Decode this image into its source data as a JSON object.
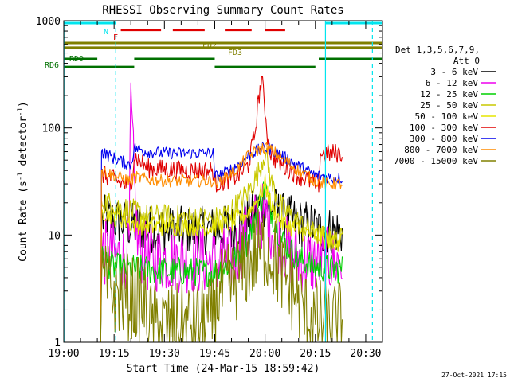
{
  "chart_data": {
    "type": "line",
    "title": "RHESSI Observing Summary Count Rates",
    "xlabel": "Start Time (24-Mar-15 18:59:42)",
    "ylabel": "Count Rate (s⁻¹ detector⁻¹)",
    "ylabel_main": "Count Rate (s",
    "ylabel_sup1": "-1",
    "ylabel_mid": " detector",
    "ylabel_sup2": "-1",
    "ylabel_end": ")",
    "yscale": "log",
    "ylim": [
      1,
      1000
    ],
    "xlim_min": [
      0,
      95
    ],
    "x_ticks": [
      {
        "min": 0,
        "label": "19:00"
      },
      {
        "min": 15,
        "label": "19:15"
      },
      {
        "min": 30,
        "label": "19:30"
      },
      {
        "min": 45,
        "label": "19:45"
      },
      {
        "min": 60,
        "label": "20:00"
      },
      {
        "min": 75,
        "label": "20:15"
      },
      {
        "min": 90,
        "label": "20:30"
      }
    ],
    "y_ticks": [
      {
        "value": 1,
        "label": "1"
      },
      {
        "value": 10,
        "label": "10"
      },
      {
        "value": 100,
        "label": "100"
      },
      {
        "value": 1000,
        "label": "1000"
      }
    ],
    "legend_header": [
      "Det 1,3,5,6,7,9,",
      "Att 0"
    ],
    "legend_position": "right",
    "footer": "27-Oct-2021 17:15",
    "flag_labels": [
      {
        "text": "N",
        "color": "#00e5ee"
      },
      {
        "text": "F",
        "color": "#e00000"
      },
      {
        "text": "FD2",
        "color": "#808000"
      },
      {
        "text": "FD3",
        "color": "#808000"
      },
      {
        "text": "RD0",
        "color": "#007000"
      },
      {
        "text": "RD6",
        "color": "#007000"
      }
    ],
    "flag_bars": [
      {
        "label": "N",
        "y": 950,
        "color": "#00e5ee",
        "segments": [
          [
            0,
            15.5
          ],
          [
            78,
            95
          ]
        ]
      },
      {
        "label": "F",
        "y": 820,
        "color": "#e00000",
        "segments": [
          [
            17,
            29
          ],
          [
            32.5,
            42
          ],
          [
            48,
            56
          ],
          [
            60,
            66
          ]
        ]
      },
      {
        "label": "FD2",
        "y": 620,
        "color": "#808000",
        "segments": [
          [
            0,
            95
          ]
        ]
      },
      {
        "label": "FD3",
        "y": 560,
        "color": "#808000",
        "segments": [
          [
            0,
            95
          ]
        ]
      },
      {
        "label": "RD0",
        "y": 440,
        "color": "#007000",
        "segments": [
          [
            0,
            10
          ],
          [
            21,
            45
          ],
          [
            76,
            95
          ]
        ]
      },
      {
        "label": "RD6",
        "y": 370,
        "color": "#007000",
        "segments": [
          [
            0,
            21
          ],
          [
            45,
            75
          ]
        ]
      }
    ],
    "event_lines": [
      {
        "x": 0.3,
        "color": "#00e5ee",
        "dashed": false
      },
      {
        "x": 15.5,
        "color": "#00e5ee",
        "dashed": true
      },
      {
        "x": 78,
        "color": "#00e5ee",
        "dashed": false
      },
      {
        "x": 92,
        "color": "#00e5ee",
        "dashed": true
      }
    ],
    "series": [
      {
        "name": "3 - 6 keV",
        "color": "#000000",
        "x": [
          11,
          11.2,
          14,
          18,
          20,
          22,
          25,
          30,
          35,
          40,
          44.5,
          45,
          50,
          55,
          58,
          60,
          62,
          65,
          70,
          75,
          76,
          78,
          80,
          82,
          83
        ],
        "y": [
          1,
          14,
          14,
          13,
          12,
          12,
          11.5,
          11,
          11,
          11,
          11,
          11,
          11.5,
          14,
          18,
          20,
          18,
          15,
          13,
          12,
          11,
          11,
          11,
          11,
          10.5
        ],
        "noise": 0.1
      },
      {
        "name": "6 - 12 keV",
        "color": "#ee00ee",
        "x": [
          11,
          11.2,
          15,
          18,
          19.5,
          20,
          21,
          22,
          25,
          30,
          35,
          40,
          44.5,
          45,
          50,
          55,
          58,
          60,
          62,
          65,
          70,
          75,
          76,
          78,
          80,
          83
        ],
        "y": [
          1,
          7,
          6.5,
          6,
          8,
          170,
          30,
          8,
          6,
          6,
          6,
          5.8,
          5.6,
          5.5,
          6,
          10,
          14,
          16,
          12,
          8,
          6,
          5.6,
          5.8,
          5.7,
          5.7,
          5.6
        ],
        "noise": 0.14
      },
      {
        "name": "12 - 25 keV",
        "color": "#00d000",
        "x": [
          11,
          11.2,
          15,
          20,
          25,
          30,
          35,
          40,
          44.5,
          45,
          50,
          55,
          58,
          60,
          62,
          65,
          70,
          75,
          76,
          78,
          80,
          83
        ],
        "y": [
          1,
          6,
          5,
          4.8,
          4.8,
          4.6,
          4.6,
          4.5,
          4.5,
          4.6,
          5.5,
          9,
          18,
          28,
          16,
          9,
          6,
          5,
          5,
          5,
          4.8,
          4.8
        ],
        "noise": 0.06
      },
      {
        "name": "25 - 50 keV",
        "color": "#c8c800",
        "x": [
          11,
          11.2,
          15,
          20,
          25,
          30,
          35,
          40,
          44.5,
          45,
          50,
          55,
          58,
          60,
          62,
          65,
          70,
          75,
          76,
          78,
          80,
          83
        ],
        "y": [
          1,
          21,
          19,
          17,
          15,
          15,
          14.5,
          14.5,
          14,
          14,
          17,
          25,
          38,
          60,
          30,
          18,
          13,
          10,
          10,
          9.5,
          9,
          9
        ],
        "noise": 0.05
      },
      {
        "name": "50 - 100 keV",
        "color": "#e6e600",
        "x": [
          11,
          11.2,
          15,
          20,
          25,
          30,
          35,
          40,
          44.5,
          45,
          50,
          55,
          58,
          60,
          62,
          65,
          70,
          75,
          76,
          78,
          80,
          83
        ],
        "y": [
          1,
          17,
          15,
          13,
          12,
          12,
          12,
          12,
          12,
          12,
          13,
          16,
          22,
          30,
          18,
          13,
          11,
          10,
          10,
          9,
          9,
          9
        ],
        "noise": 0.04
      },
      {
        "name": "100 - 300 keV",
        "color": "#e00000",
        "x": [
          11,
          11.2,
          15,
          20,
          21,
          25,
          30,
          35,
          40,
          44.5,
          45,
          48,
          52,
          55,
          57,
          58,
          59,
          60,
          61,
          62,
          65,
          70,
          75,
          76,
          76.5,
          78,
          80,
          83
        ],
        "y": [
          1,
          37,
          33,
          28,
          55,
          42,
          41,
          40,
          40,
          40,
          30,
          32,
          36,
          45,
          90,
          180,
          290,
          150,
          70,
          55,
          45,
          36,
          30,
          30,
          58,
          57,
          58,
          58
        ],
        "noise": 0.04
      },
      {
        "name": "300 - 800 keV",
        "color": "#0000ee",
        "x": [
          11,
          11.2,
          15,
          20,
          21,
          25,
          30,
          35,
          40,
          44.5,
          45,
          48,
          52,
          55,
          58,
          60,
          62,
          65,
          70,
          75,
          76,
          78,
          80,
          83
        ],
        "y": [
          1,
          60,
          52,
          45,
          65,
          60,
          58,
          58,
          58,
          58,
          35,
          38,
          45,
          55,
          62,
          65,
          63,
          55,
          44,
          36,
          36,
          35,
          34,
          34
        ],
        "noise": 0.025
      },
      {
        "name": "800 - 7000 keV",
        "color": "#ff8c00",
        "x": [
          11,
          11.2,
          15,
          20,
          21,
          25,
          30,
          35,
          40,
          44.5,
          45,
          48,
          52,
          55,
          58,
          60,
          62,
          65,
          70,
          75,
          76,
          78,
          80,
          83
        ],
        "y": [
          1,
          40,
          36,
          32,
          35,
          33,
          32,
          32,
          32,
          32,
          30,
          34,
          42,
          55,
          62,
          66,
          62,
          52,
          40,
          32,
          31,
          30,
          30,
          30
        ],
        "noise": 0.025
      },
      {
        "name": "7000 - 15000 keV",
        "color": "#808000",
        "x": [
          11,
          11.2,
          15,
          20,
          24,
          25,
          30,
          35,
          40,
          44.5,
          45,
          50,
          55,
          58,
          60,
          62,
          65,
          70,
          72,
          75,
          78,
          80,
          82,
          83
        ],
        "y": [
          1,
          3.5,
          3,
          2.6,
          2.3,
          1.5,
          1.4,
          1.4,
          1.5,
          1.6,
          2.5,
          3.5,
          5.5,
          7,
          8,
          6.5,
          4.5,
          2.5,
          1.8,
          1.6,
          1.5,
          1.4,
          1.5,
          1.4
        ],
        "noise": 0.18
      }
    ]
  }
}
